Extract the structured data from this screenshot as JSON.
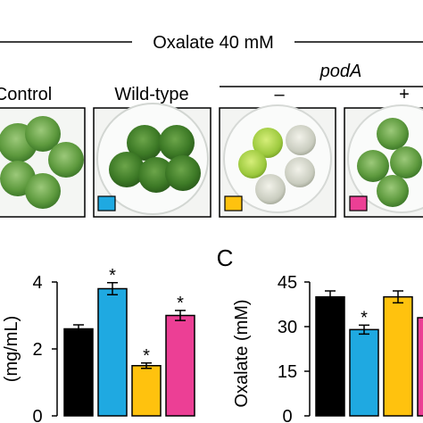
{
  "header": {
    "oxalate_label": "Oxalate 40 mM",
    "poda_label": "podA",
    "columns": [
      "Control",
      "Wild-type",
      "–",
      "+"
    ]
  },
  "panel_label_c": "C",
  "colors": {
    "black": "#000000",
    "wild_type": "#1fa9e1",
    "poda_minus": "#ffc20e",
    "poda_plus": "#ec3f95",
    "colony_green": "#6aa84f"
  },
  "chart_data": [
    {
      "type": "bar",
      "ylabel": "(mg/mL)",
      "ylim": [
        0,
        4
      ],
      "yticks": [
        "0",
        "2",
        "4"
      ],
      "categories": [
        "Control",
        "Wild-type",
        "podA –",
        "podA +"
      ],
      "values": [
        2.6,
        3.8,
        1.5,
        3.0
      ],
      "errors": [
        0.12,
        0.18,
        0.08,
        0.15
      ],
      "significance": [
        "",
        "*",
        "*",
        "*"
      ]
    },
    {
      "type": "bar",
      "ylabel": "Oxalate (mM)",
      "ylim": [
        0,
        45
      ],
      "yticks": [
        "0",
        "15",
        "30",
        "45"
      ],
      "categories": [
        "Control",
        "Wild-type",
        "podA –",
        "podA +"
      ],
      "values": [
        40,
        29,
        40,
        33
      ],
      "errors": [
        2,
        1.5,
        2,
        1.5
      ],
      "significance": [
        "",
        "*",
        "",
        ""
      ]
    }
  ]
}
